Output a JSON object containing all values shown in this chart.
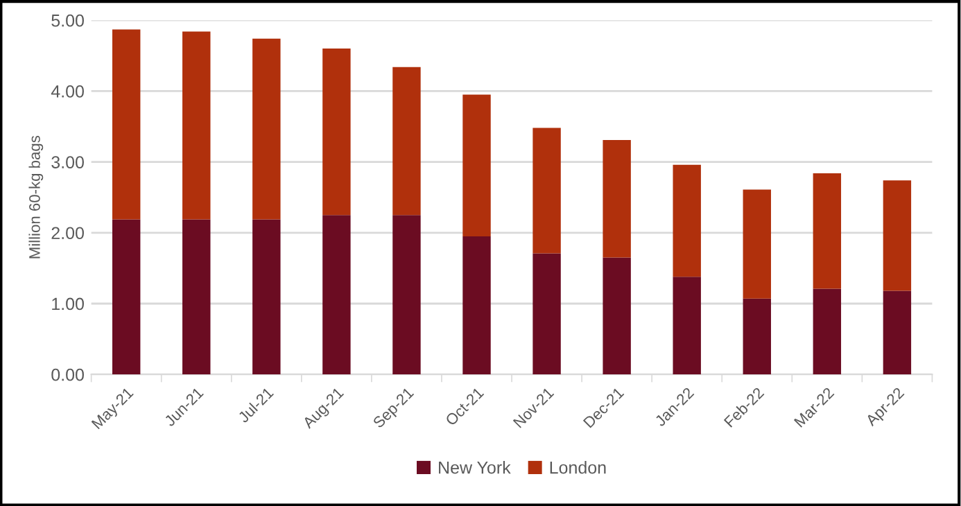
{
  "chart_data": {
    "type": "bar",
    "stacked": true,
    "ylabel": "Million 60-kg bags",
    "categories": [
      "May-21",
      "Jun-21",
      "Jul-21",
      "Aug-21",
      "Sep-21",
      "Oct-21",
      "Nov-21",
      "Dec-21",
      "Jan-22",
      "Feb-22",
      "Mar-22",
      "Apr-22"
    ],
    "series": [
      {
        "name": "New York",
        "color": "#6b0c22",
        "values": [
          2.19,
          2.19,
          2.19,
          2.25,
          2.25,
          1.95,
          1.71,
          1.65,
          1.38,
          1.07,
          1.21,
          1.18
        ]
      },
      {
        "name": "London",
        "color": "#b0300c",
        "values": [
          2.68,
          2.65,
          2.55,
          2.35,
          2.09,
          2.0,
          1.77,
          1.66,
          1.58,
          1.54,
          1.63,
          1.56
        ]
      }
    ],
    "ylim": [
      0,
      5
    ],
    "yticks": [
      {
        "value": 0,
        "label": "0.00"
      },
      {
        "value": 1,
        "label": "1.00"
      },
      {
        "value": 2,
        "label": "2.00"
      },
      {
        "value": 3,
        "label": "3.00"
      },
      {
        "value": 4,
        "label": "4.00"
      },
      {
        "value": 5,
        "label": "5.00"
      }
    ],
    "grid": "y",
    "legend": "bottom"
  }
}
